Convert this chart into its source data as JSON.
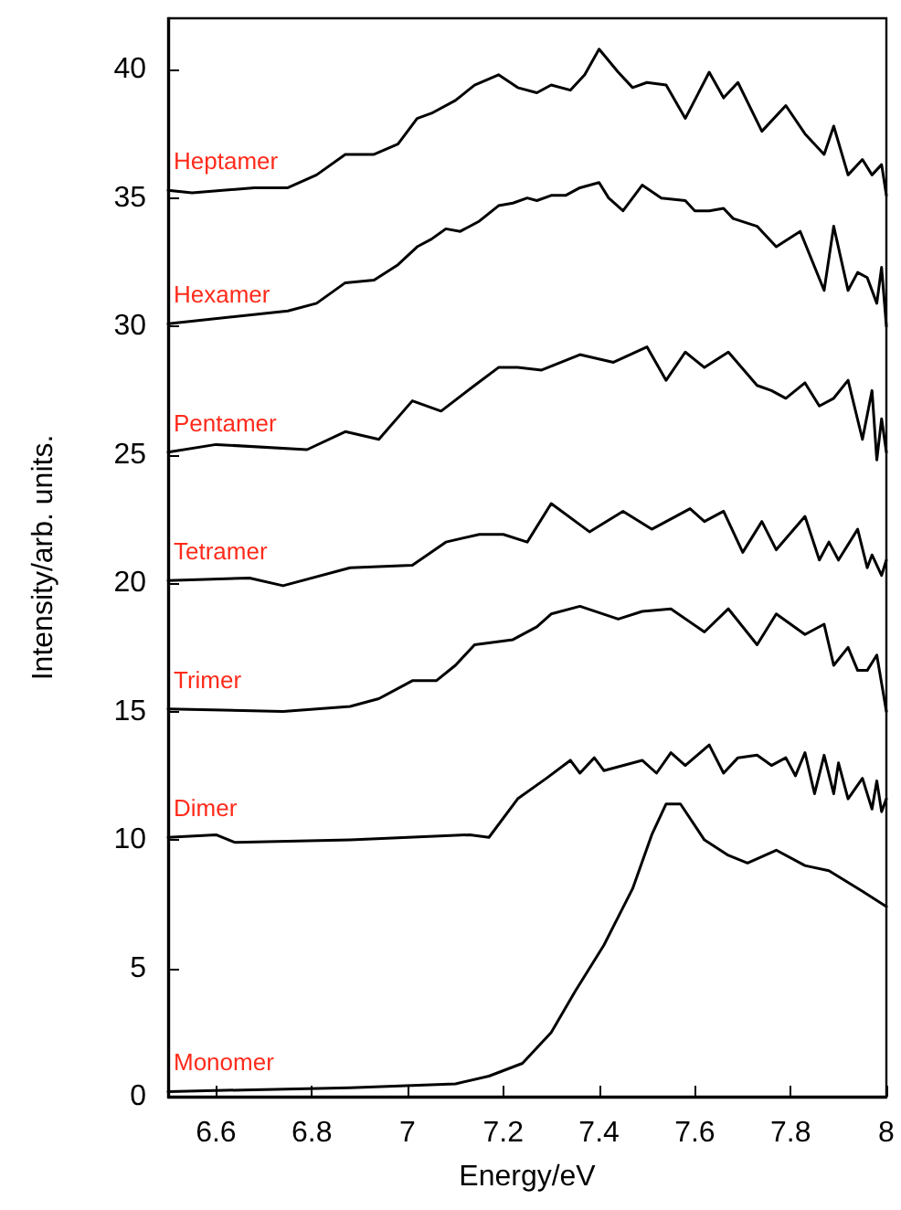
{
  "chart_data": {
    "type": "line",
    "xlabel": "Energy/eV",
    "ylabel": "Intensity/arb. units.",
    "xlim": [
      6.5,
      8
    ],
    "xticks": [
      6.6,
      6.8,
      7,
      7.2,
      7.4,
      7.6,
      7.8,
      8
    ],
    "ylim": [
      0,
      42
    ],
    "yticks": [
      0,
      5,
      10,
      15,
      20,
      25,
      30,
      35,
      40
    ],
    "grid": false,
    "legend": false,
    "marker": "none",
    "line_style": "solid",
    "series": [
      {
        "name": "Heptamer",
        "color": "#000000",
        "x": [
          6.5,
          6.55,
          6.68,
          6.75,
          6.81,
          6.87,
          6.93,
          6.98,
          7.02,
          7.05,
          7.1,
          7.14,
          7.19,
          7.23,
          7.27,
          7.3,
          7.34,
          7.37,
          7.4,
          7.44,
          7.47,
          7.5,
          7.54,
          7.58,
          7.63,
          7.66,
          7.69,
          7.74,
          7.79,
          7.83,
          7.87,
          7.89,
          7.92,
          7.95,
          7.97,
          7.99,
          8.0
        ],
        "values": [
          35.3,
          35.2,
          35.4,
          35.4,
          35.9,
          36.7,
          36.7,
          37.1,
          38.1,
          38.3,
          38.8,
          39.4,
          39.8,
          39.3,
          39.1,
          39.4,
          39.2,
          39.8,
          40.8,
          39.9,
          39.3,
          39.5,
          39.4,
          38.1,
          39.9,
          38.9,
          39.5,
          37.6,
          38.6,
          37.5,
          36.7,
          37.8,
          35.9,
          36.5,
          35.9,
          36.3,
          35.1
        ]
      },
      {
        "name": "Hexamer",
        "color": "#000000",
        "x": [
          6.5,
          6.75,
          6.81,
          6.87,
          6.93,
          6.98,
          7.02,
          7.05,
          7.08,
          7.11,
          7.15,
          7.19,
          7.22,
          7.25,
          7.27,
          7.3,
          7.33,
          7.36,
          7.4,
          7.42,
          7.45,
          7.49,
          7.53,
          7.58,
          7.6,
          7.63,
          7.66,
          7.68,
          7.73,
          7.77,
          7.82,
          7.87,
          7.89,
          7.92,
          7.94,
          7.96,
          7.98,
          7.99,
          8.0
        ],
        "values": [
          30.1,
          30.6,
          30.9,
          31.7,
          31.8,
          32.4,
          33.1,
          33.4,
          33.8,
          33.7,
          34.1,
          34.7,
          34.8,
          35.0,
          34.9,
          35.1,
          35.1,
          35.4,
          35.6,
          35.0,
          34.5,
          35.5,
          35.0,
          34.9,
          34.5,
          34.5,
          34.6,
          34.2,
          33.9,
          33.1,
          33.7,
          31.4,
          33.9,
          31.4,
          32.1,
          31.9,
          30.9,
          32.3,
          30.0
        ]
      },
      {
        "name": "Pentamer",
        "color": "#000000",
        "x": [
          6.5,
          6.6,
          6.79,
          6.87,
          6.94,
          7.01,
          7.07,
          7.14,
          7.19,
          7.23,
          7.28,
          7.36,
          7.43,
          7.5,
          7.54,
          7.58,
          7.62,
          7.67,
          7.73,
          7.76,
          7.79,
          7.83,
          7.86,
          7.89,
          7.92,
          7.95,
          7.97,
          7.98,
          7.99,
          8.0
        ],
        "values": [
          25.1,
          25.4,
          25.2,
          25.9,
          25.6,
          27.1,
          26.7,
          27.7,
          28.4,
          28.4,
          28.3,
          28.9,
          28.6,
          29.2,
          27.9,
          29.0,
          28.4,
          29.0,
          27.7,
          27.5,
          27.2,
          27.8,
          26.9,
          27.2,
          27.9,
          25.6,
          27.5,
          24.8,
          26.4,
          25.1
        ]
      },
      {
        "name": "Tetramer",
        "color": "#000000",
        "x": [
          6.5,
          6.67,
          6.74,
          6.88,
          7.01,
          7.08,
          7.15,
          7.2,
          7.25,
          7.3,
          7.38,
          7.45,
          7.51,
          7.59,
          7.62,
          7.66,
          7.7,
          7.74,
          7.77,
          7.83,
          7.86,
          7.88,
          7.9,
          7.94,
          7.96,
          7.97,
          7.99,
          8.0
        ],
        "values": [
          20.1,
          20.2,
          19.9,
          20.6,
          20.7,
          21.6,
          21.9,
          21.9,
          21.6,
          23.1,
          22.0,
          22.8,
          22.1,
          22.9,
          22.4,
          22.8,
          21.2,
          22.4,
          21.3,
          22.6,
          20.9,
          21.6,
          20.9,
          22.1,
          20.6,
          21.1,
          20.3,
          20.9
        ]
      },
      {
        "name": "Trimer",
        "color": "#000000",
        "x": [
          6.5,
          6.74,
          6.88,
          6.94,
          7.01,
          7.06,
          7.1,
          7.14,
          7.22,
          7.27,
          7.3,
          7.36,
          7.44,
          7.49,
          7.55,
          7.62,
          7.67,
          7.73,
          7.77,
          7.83,
          7.87,
          7.89,
          7.92,
          7.94,
          7.96,
          7.98,
          8.0
        ],
        "values": [
          15.1,
          15.0,
          15.2,
          15.5,
          16.2,
          16.2,
          16.8,
          17.6,
          17.8,
          18.3,
          18.8,
          19.1,
          18.6,
          18.9,
          19.0,
          18.1,
          19.0,
          17.6,
          18.8,
          18.0,
          18.4,
          16.8,
          17.5,
          16.6,
          16.6,
          17.2,
          15.0
        ]
      },
      {
        "name": "Dimer",
        "color": "#000000",
        "x": [
          6.5,
          6.6,
          6.64,
          6.88,
          7.13,
          7.17,
          7.23,
          7.29,
          7.34,
          7.36,
          7.39,
          7.41,
          7.49,
          7.52,
          7.55,
          7.58,
          7.63,
          7.66,
          7.69,
          7.73,
          7.76,
          7.79,
          7.81,
          7.83,
          7.85,
          7.87,
          7.89,
          7.9,
          7.92,
          7.95,
          7.97,
          7.98,
          7.99,
          8.0
        ],
        "values": [
          10.1,
          10.2,
          9.9,
          10.0,
          10.2,
          10.1,
          11.6,
          12.4,
          13.1,
          12.6,
          13.2,
          12.7,
          13.1,
          12.6,
          13.4,
          12.9,
          13.7,
          12.6,
          13.2,
          13.3,
          12.9,
          13.2,
          12.5,
          13.4,
          11.8,
          13.3,
          11.8,
          13.0,
          11.6,
          12.4,
          11.2,
          12.3,
          11.1,
          11.6
        ]
      },
      {
        "name": "Monomer",
        "color": "#000000",
        "x": [
          6.5,
          6.88,
          7.1,
          7.17,
          7.24,
          7.3,
          7.35,
          7.41,
          7.47,
          7.51,
          7.54,
          7.57,
          7.62,
          7.67,
          7.71,
          7.77,
          7.83,
          7.88,
          7.95,
          8.0
        ],
        "values": [
          0.2,
          0.35,
          0.5,
          0.8,
          1.3,
          2.5,
          4.1,
          5.9,
          8.1,
          10.2,
          11.4,
          11.4,
          10.0,
          9.4,
          9.1,
          9.6,
          9.0,
          8.8,
          8.0,
          7.4
        ]
      }
    ]
  }
}
